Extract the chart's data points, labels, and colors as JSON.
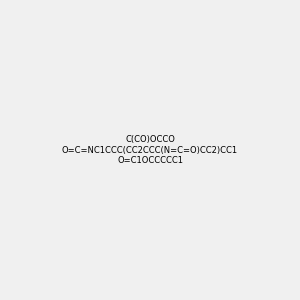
{
  "smiles": [
    "C(CO)OCCO",
    "O=C=NC1CCC(CC2CCC(N=C=O)CC2)CC1",
    "O=C1OCCCCC1"
  ],
  "background_color": "#f0f0f0",
  "bond_color": "#333333",
  "atom_colors": {
    "O": "#ff0000",
    "N": "#0000cd",
    "C": "#333333",
    "H": "#4a8080"
  },
  "figsize": [
    3.0,
    3.0
  ],
  "dpi": 100
}
